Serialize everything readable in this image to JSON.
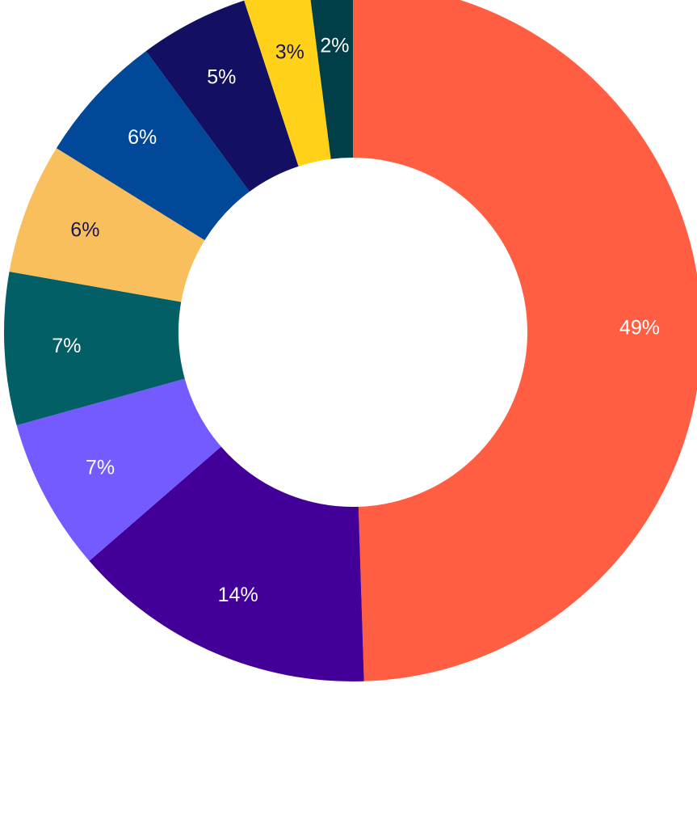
{
  "chart_data": {
    "type": "pie",
    "style": "donut",
    "start": "top",
    "direction": "clockwise",
    "slices": [
      {
        "value": 49,
        "label": "49%",
        "color": "#FF5E43",
        "label_color": "#FFFFFF"
      },
      {
        "value": 14,
        "label": "14%",
        "color": "#420099",
        "label_color": "#FFFFFF"
      },
      {
        "value": 7,
        "label": "7%",
        "color": "#745BFF",
        "label_color": "#FFFFFF"
      },
      {
        "value": 7,
        "label": "7%",
        "color": "#025F66",
        "label_color": "#FFFFFF"
      },
      {
        "value": 6,
        "label": "6%",
        "color": "#F8BF5C",
        "label_color": "#1A1557"
      },
      {
        "value": 6,
        "label": "6%",
        "color": "#024898",
        "label_color": "#FFFFFF"
      },
      {
        "value": 5,
        "label": "5%",
        "color": "#130F62",
        "label_color": "#FFFFFF"
      },
      {
        "value": 3,
        "label": "3%",
        "color": "#FFD118",
        "label_color": "#1A1557"
      },
      {
        "value": 2,
        "label": "2%",
        "color": "#003E48",
        "label_color": "#FFFFFF"
      }
    ]
  }
}
